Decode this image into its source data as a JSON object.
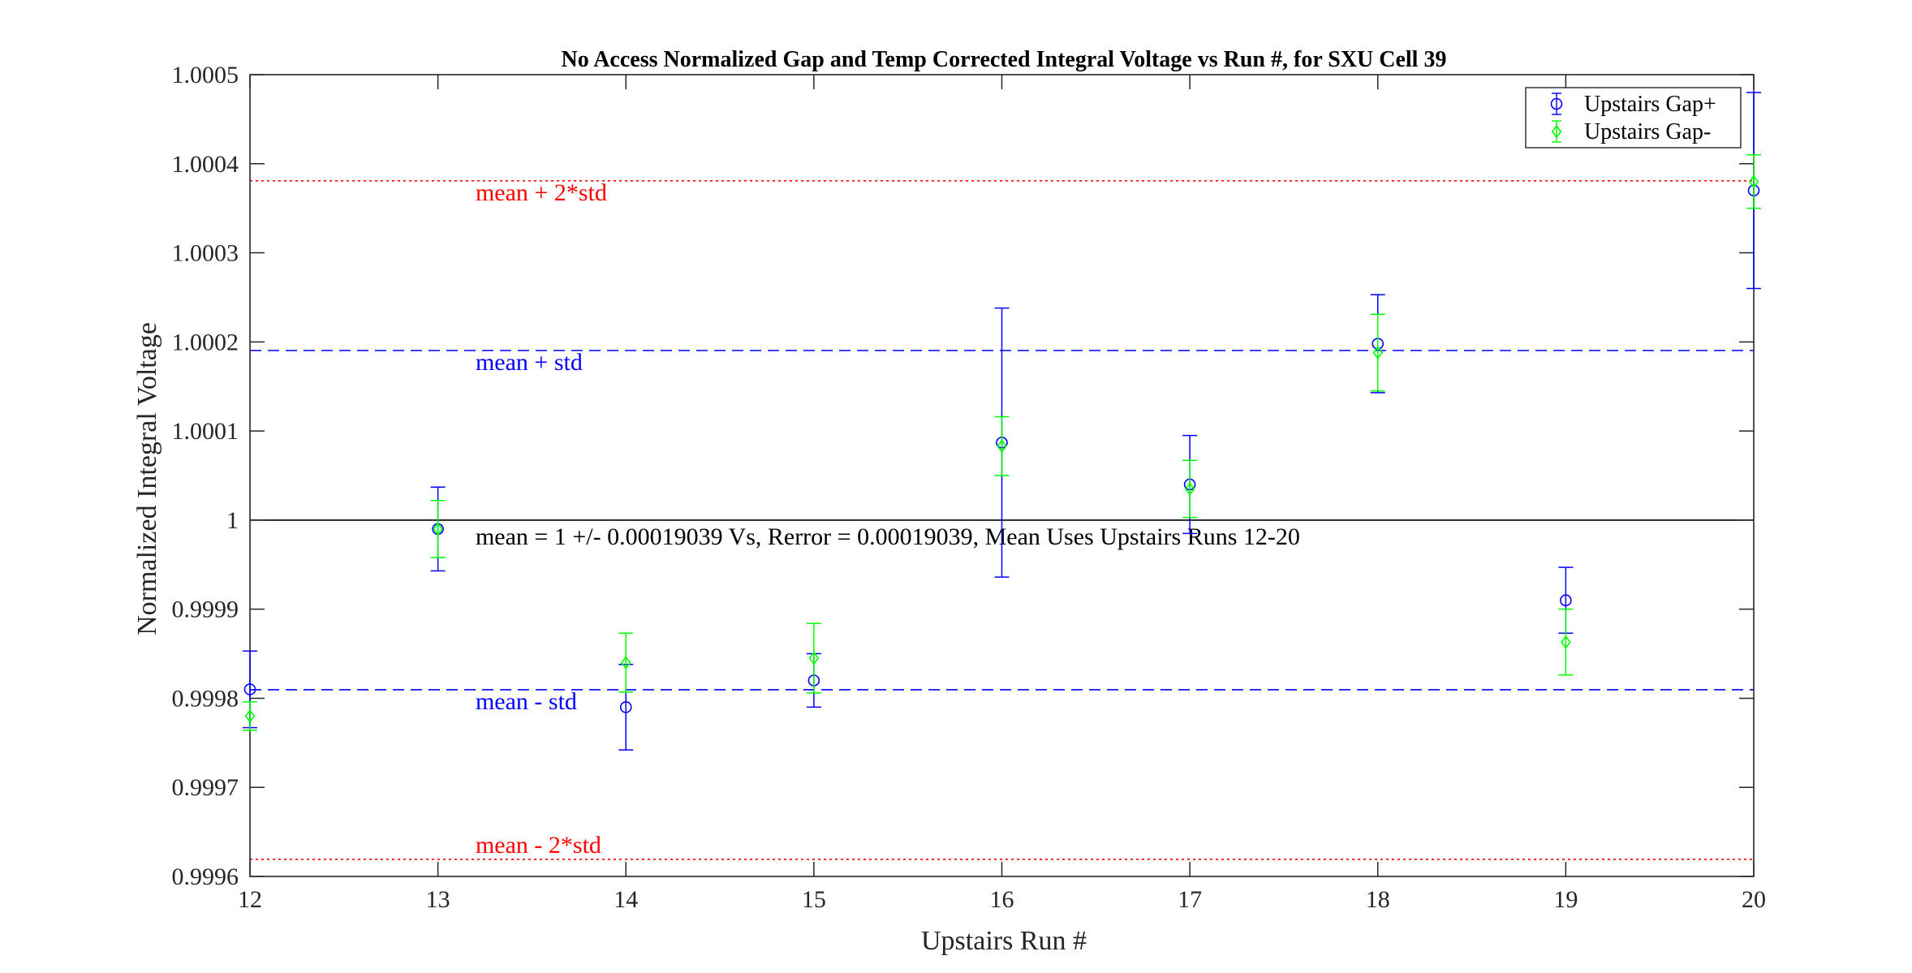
{
  "chart_data": {
    "type": "scatter",
    "title": "No Access Normalized Gap and Temp Corrected Integral Voltage vs Run #, for SXU Cell 39",
    "xlabel": "Upstairs Run #",
    "ylabel": "Normalized Integral Voltage",
    "xlim": [
      12,
      20
    ],
    "ylim": [
      0.9996,
      1.0005
    ],
    "x_ticks": [
      12,
      13,
      14,
      15,
      16,
      17,
      18,
      19,
      20
    ],
    "x_tick_labels": [
      "12",
      "13",
      "14",
      "15",
      "16",
      "17",
      "18",
      "19",
      "20"
    ],
    "y_ticks": [
      0.9996,
      0.9997,
      0.9998,
      0.9999,
      1.0,
      1.0001,
      1.0002,
      1.0003,
      1.0004,
      1.0005
    ],
    "y_tick_labels": [
      "0.9996",
      "0.9997",
      "0.9998",
      "0.9999",
      "1",
      "1.0001",
      "1.0002",
      "1.0003",
      "1.0004",
      "1.0005"
    ],
    "grid": false,
    "legend_position": "top-right",
    "series": [
      {
        "name": "Upstairs Gap+",
        "color": "#0000ff",
        "marker": "circle",
        "x": [
          12,
          13,
          14,
          15,
          16,
          17,
          18,
          19,
          20
        ],
        "y": [
          0.99981,
          0.99999,
          0.99979,
          0.99982,
          1.000087,
          1.00004,
          1.000198,
          0.99991,
          1.00037
        ],
        "err": [
          4.3e-05,
          4.7e-05,
          4.8e-05,
          3e-05,
          0.000151,
          5.5e-05,
          5.5e-05,
          3.7e-05,
          0.00011
        ]
      },
      {
        "name": "Upstairs Gap-",
        "color": "#00ff00",
        "marker": "diamond",
        "x": [
          12,
          13,
          14,
          15,
          16,
          17,
          18,
          19,
          20
        ],
        "y": [
          0.99978,
          0.99999,
          0.99984,
          0.999845,
          1.000083,
          1.000035,
          1.000188,
          0.999863,
          1.00038
        ],
        "err": [
          1.6e-05,
          3.2e-05,
          3.3e-05,
          3.9e-05,
          3.3e-05,
          3.2e-05,
          4.3e-05,
          3.7e-05,
          3e-05
        ]
      }
    ],
    "reference_lines": [
      {
        "y": 1.0003808,
        "color": "#ff0000",
        "style": "dotted",
        "label": "mean + 2*std"
      },
      {
        "y": 1.00019039,
        "color": "#0000ff",
        "style": "dashed",
        "label": "mean + std"
      },
      {
        "y": 1.0,
        "color": "#000000",
        "style": "solid",
        "label": "mean = 1 +/- 0.00019039 Vs, Rerror = 0.00019039, Mean Uses Upstairs Runs 12-20"
      },
      {
        "y": 0.99980961,
        "color": "#0000ff",
        "style": "dashed",
        "label": "mean - std"
      },
      {
        "y": 0.9996192,
        "color": "#ff0000",
        "style": "dotted",
        "label": "mean - 2*std"
      }
    ]
  }
}
